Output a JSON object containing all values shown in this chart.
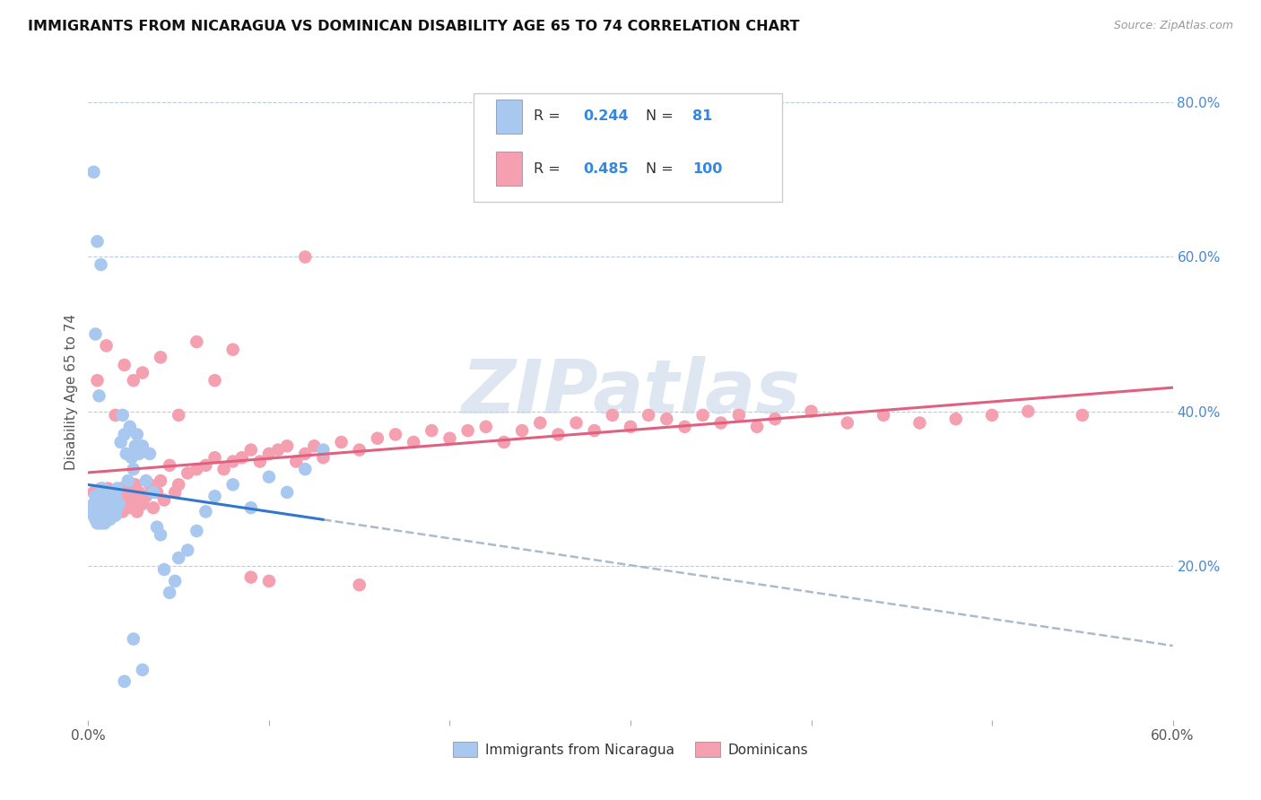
{
  "title": "IMMIGRANTS FROM NICARAGUA VS DOMINICAN DISABILITY AGE 65 TO 74 CORRELATION CHART",
  "source": "Source: ZipAtlas.com",
  "ylabel": "Disability Age 65 to 74",
  "xlim": [
    0.0,
    0.6
  ],
  "ylim": [
    0.0,
    0.85
  ],
  "x_ticks": [
    0.0,
    0.1,
    0.2,
    0.3,
    0.4,
    0.5,
    0.6
  ],
  "x_tick_labels": [
    "0.0%",
    "",
    "",
    "",
    "",
    "",
    "60.0%"
  ],
  "y_tick_labels_right": [
    "20.0%",
    "40.0%",
    "60.0%",
    "80.0%"
  ],
  "y_ticks_right": [
    0.2,
    0.4,
    0.6,
    0.8
  ],
  "nicaragua_color": "#a8c8f0",
  "dominican_color": "#f4a0b0",
  "nicaragua_line_color": "#3377cc",
  "dominican_line_color": "#e06080",
  "dashed_line_color": "#aabbcc",
  "nicaragua_R": 0.244,
  "nicaragua_N": 81,
  "dominican_R": 0.485,
  "dominican_N": 100,
  "watermark": "ZIPatlas",
  "watermark_color": "#c8d8e8",
  "legend_label_nicaragua": "Immigrants from Nicaragua",
  "legend_label_dominican": "Dominicans",
  "nicaragua_scatter_x": [
    0.002,
    0.003,
    0.003,
    0.004,
    0.004,
    0.004,
    0.005,
    0.005,
    0.005,
    0.006,
    0.006,
    0.006,
    0.007,
    0.007,
    0.007,
    0.007,
    0.008,
    0.008,
    0.008,
    0.008,
    0.009,
    0.009,
    0.009,
    0.009,
    0.01,
    0.01,
    0.01,
    0.011,
    0.011,
    0.011,
    0.012,
    0.012,
    0.012,
    0.013,
    0.013,
    0.014,
    0.014,
    0.015,
    0.015,
    0.016,
    0.016,
    0.017,
    0.018,
    0.019,
    0.02,
    0.021,
    0.022,
    0.023,
    0.024,
    0.025,
    0.026,
    0.027,
    0.028,
    0.03,
    0.032,
    0.034,
    0.036,
    0.038,
    0.04,
    0.042,
    0.045,
    0.048,
    0.05,
    0.055,
    0.06,
    0.065,
    0.07,
    0.08,
    0.09,
    0.1,
    0.11,
    0.12,
    0.13,
    0.003,
    0.004,
    0.005,
    0.006,
    0.007,
    0.02,
    0.03,
    0.025
  ],
  "nicaragua_scatter_y": [
    0.27,
    0.265,
    0.28,
    0.26,
    0.275,
    0.29,
    0.255,
    0.27,
    0.285,
    0.26,
    0.275,
    0.29,
    0.255,
    0.265,
    0.28,
    0.295,
    0.26,
    0.27,
    0.285,
    0.3,
    0.255,
    0.265,
    0.28,
    0.295,
    0.26,
    0.275,
    0.29,
    0.265,
    0.28,
    0.295,
    0.26,
    0.275,
    0.295,
    0.265,
    0.29,
    0.27,
    0.295,
    0.265,
    0.29,
    0.275,
    0.3,
    0.28,
    0.36,
    0.395,
    0.37,
    0.345,
    0.31,
    0.38,
    0.34,
    0.325,
    0.355,
    0.37,
    0.345,
    0.355,
    0.31,
    0.345,
    0.295,
    0.25,
    0.24,
    0.195,
    0.165,
    0.18,
    0.21,
    0.22,
    0.245,
    0.27,
    0.29,
    0.305,
    0.275,
    0.315,
    0.295,
    0.325,
    0.35,
    0.71,
    0.5,
    0.62,
    0.42,
    0.59,
    0.05,
    0.065,
    0.105
  ],
  "dominican_scatter_x": [
    0.003,
    0.004,
    0.005,
    0.006,
    0.007,
    0.008,
    0.009,
    0.01,
    0.011,
    0.012,
    0.013,
    0.014,
    0.015,
    0.016,
    0.017,
    0.018,
    0.019,
    0.02,
    0.021,
    0.022,
    0.023,
    0.024,
    0.025,
    0.026,
    0.027,
    0.028,
    0.03,
    0.032,
    0.034,
    0.036,
    0.038,
    0.04,
    0.042,
    0.045,
    0.048,
    0.05,
    0.055,
    0.06,
    0.065,
    0.07,
    0.075,
    0.08,
    0.085,
    0.09,
    0.095,
    0.1,
    0.105,
    0.11,
    0.115,
    0.12,
    0.125,
    0.13,
    0.14,
    0.15,
    0.16,
    0.17,
    0.18,
    0.19,
    0.2,
    0.21,
    0.22,
    0.23,
    0.24,
    0.25,
    0.26,
    0.27,
    0.28,
    0.29,
    0.3,
    0.31,
    0.32,
    0.33,
    0.34,
    0.35,
    0.36,
    0.37,
    0.38,
    0.4,
    0.42,
    0.44,
    0.46,
    0.48,
    0.5,
    0.52,
    0.55,
    0.005,
    0.01,
    0.015,
    0.02,
    0.025,
    0.03,
    0.04,
    0.05,
    0.06,
    0.07,
    0.08,
    0.09,
    0.1,
    0.12,
    0.15
  ],
  "dominican_scatter_y": [
    0.295,
    0.275,
    0.29,
    0.285,
    0.3,
    0.27,
    0.29,
    0.28,
    0.3,
    0.27,
    0.29,
    0.285,
    0.295,
    0.275,
    0.285,
    0.3,
    0.27,
    0.295,
    0.28,
    0.305,
    0.275,
    0.295,
    0.285,
    0.305,
    0.27,
    0.295,
    0.28,
    0.29,
    0.305,
    0.275,
    0.295,
    0.31,
    0.285,
    0.33,
    0.295,
    0.305,
    0.32,
    0.325,
    0.33,
    0.34,
    0.325,
    0.335,
    0.34,
    0.35,
    0.335,
    0.345,
    0.35,
    0.355,
    0.335,
    0.345,
    0.355,
    0.34,
    0.36,
    0.35,
    0.365,
    0.37,
    0.36,
    0.375,
    0.365,
    0.375,
    0.38,
    0.36,
    0.375,
    0.385,
    0.37,
    0.385,
    0.375,
    0.395,
    0.38,
    0.395,
    0.39,
    0.38,
    0.395,
    0.385,
    0.395,
    0.38,
    0.39,
    0.4,
    0.385,
    0.395,
    0.385,
    0.39,
    0.395,
    0.4,
    0.395,
    0.44,
    0.485,
    0.395,
    0.46,
    0.44,
    0.45,
    0.47,
    0.395,
    0.49,
    0.44,
    0.48,
    0.185,
    0.18,
    0.6,
    0.175
  ]
}
